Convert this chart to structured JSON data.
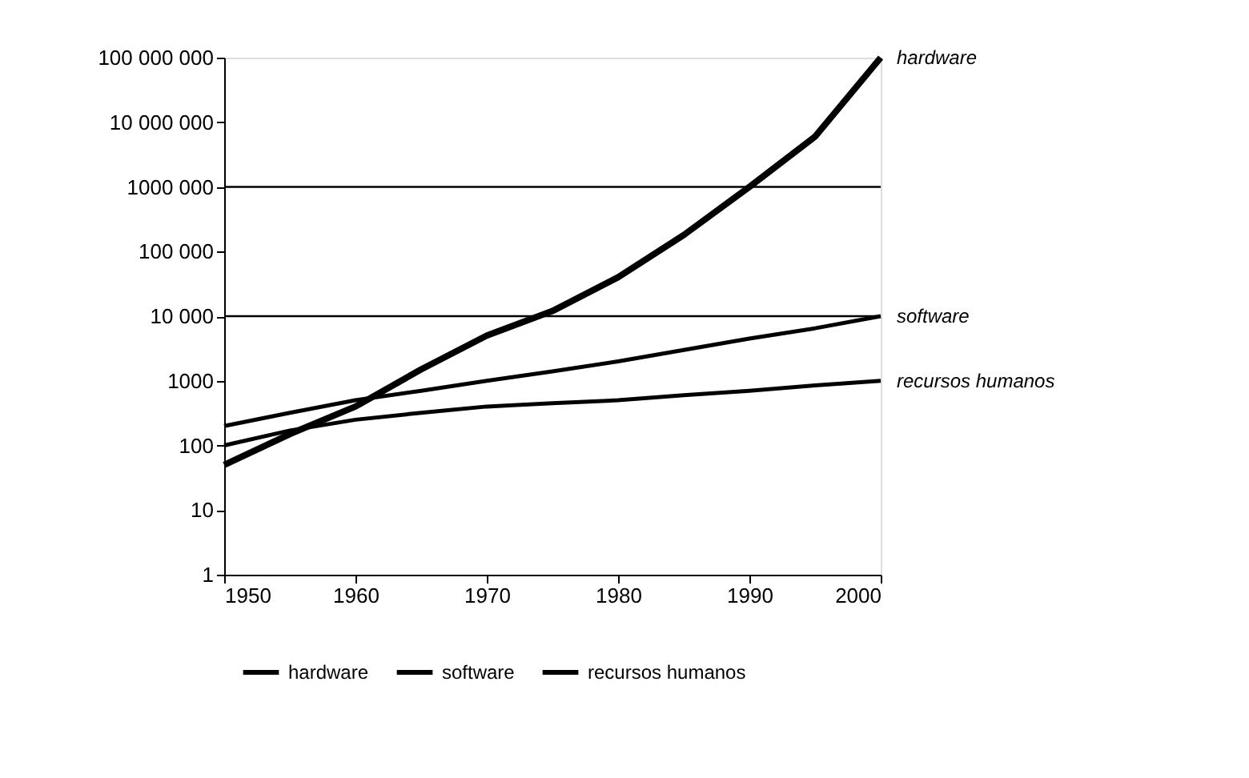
{
  "chart_data": {
    "type": "line",
    "x": [
      1950,
      1955,
      1960,
      1965,
      1970,
      1975,
      1980,
      1985,
      1990,
      1995,
      2000
    ],
    "series": [
      {
        "name": "hardware",
        "color": "#000000",
        "values": [
          50,
          150,
          400,
          1500,
          5000,
          12000,
          40000,
          180000,
          1000000,
          6000000,
          100000000
        ]
      },
      {
        "name": "software",
        "color": "#000000",
        "values": [
          200,
          320,
          500,
          700,
          1000,
          1400,
          2000,
          3000,
          4500,
          6500,
          10000
        ]
      },
      {
        "name": "recursos humanos",
        "color": "#000000",
        "values": [
          100,
          170,
          250,
          320,
          400,
          450,
          500,
          600,
          700,
          850,
          1000
        ]
      }
    ],
    "log": "y",
    "xlim": [
      1950,
      2000
    ],
    "xticks": [
      1950,
      1960,
      1970,
      1980,
      1990,
      2000
    ],
    "ylim": [
      1,
      100000000
    ],
    "yticks": [
      1,
      10,
      100,
      1000,
      {
        "value": 10000,
        "label": "10 000"
      },
      {
        "value": 100000,
        "label": "100 000"
      },
      {
        "value": 1000000,
        "label": "1000 000"
      },
      {
        "value": 10000000,
        "label": "10 000 000"
      },
      {
        "value": 100000000,
        "label": "100 000 000"
      }
    ],
    "ref_lines": [
      {
        "axis": "y",
        "value": 1000000,
        "color": "#000000"
      },
      {
        "axis": "y",
        "value": 10000,
        "color": "#000000"
      }
    ],
    "annotations": [
      "hardware",
      "software",
      "recursos humanos"
    ],
    "grid": false,
    "legend": "bottom",
    "marker": "none",
    "line_style": "solid"
  }
}
